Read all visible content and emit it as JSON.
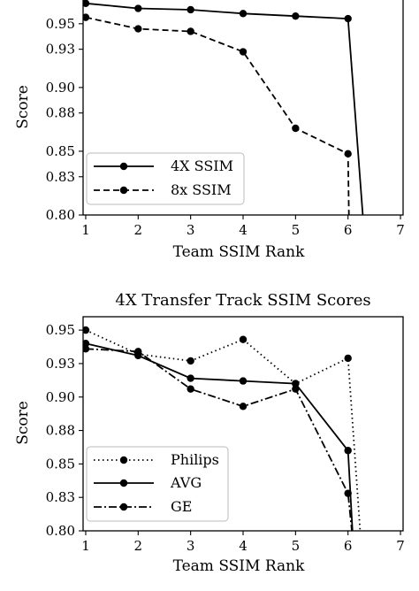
{
  "chart_data": [
    {
      "type": "line",
      "title": "",
      "xlabel": "Team SSIM Rank",
      "ylabel": "Score",
      "xlim": [
        0.95,
        7.05
      ],
      "ylim": [
        0.8,
        0.97
      ],
      "xticks": [
        1,
        2,
        3,
        4,
        5,
        6,
        7
      ],
      "yticks": [
        0.8,
        0.83,
        0.85,
        0.88,
        0.9,
        0.93,
        0.95
      ],
      "ytick_labels": [
        "0.80",
        "0.83",
        "0.85",
        "0.88",
        "0.90",
        "0.93",
        "0.95"
      ],
      "legend_position": "lower-left",
      "grid": false,
      "series": [
        {
          "name": "4X SSIM",
          "style": "solid",
          "x": [
            1,
            2,
            3,
            4,
            5,
            6,
            6.3
          ],
          "y": [
            0.966,
            0.962,
            0.961,
            0.958,
            0.956,
            0.954,
            0.79
          ],
          "markers": [
            1,
            1,
            1,
            1,
            1,
            1,
            0
          ]
        },
        {
          "name": "8x SSIM",
          "style": "dashed",
          "x": [
            1,
            2,
            3,
            4,
            5,
            6,
            6.02
          ],
          "y": [
            0.955,
            0.946,
            0.944,
            0.928,
            0.868,
            0.848,
            0.79
          ],
          "markers": [
            1,
            1,
            1,
            1,
            1,
            1,
            0
          ]
        }
      ]
    },
    {
      "type": "line",
      "title": "4X Transfer Track SSIM Scores",
      "xlabel": "Team SSIM Rank",
      "ylabel": "Score",
      "xlim": [
        0.95,
        7.05
      ],
      "ylim": [
        0.8,
        0.96
      ],
      "xticks": [
        1,
        2,
        3,
        4,
        5,
        6,
        7
      ],
      "yticks": [
        0.8,
        0.825,
        0.85,
        0.875,
        0.9,
        0.925,
        0.95
      ],
      "ytick_labels": [
        "0.80",
        "0.83",
        "0.85",
        "0.88",
        "0.90",
        "0.93",
        "0.95"
      ],
      "legend_position": "lower-left",
      "grid": false,
      "series": [
        {
          "name": "Philips",
          "style": "dotted",
          "x": [
            1,
            2,
            3,
            4,
            5,
            6,
            6.25
          ],
          "y": [
            0.95,
            0.932,
            0.927,
            0.943,
            0.91,
            0.929,
            0.79
          ],
          "markers": [
            1,
            1,
            1,
            1,
            1,
            1,
            0
          ]
        },
        {
          "name": "AVG",
          "style": "solid",
          "x": [
            1,
            2,
            3,
            4,
            5,
            6,
            6.1
          ],
          "y": [
            0.94,
            0.931,
            0.914,
            0.912,
            0.91,
            0.86,
            0.79
          ],
          "markers": [
            1,
            1,
            1,
            1,
            1,
            1,
            0
          ]
        },
        {
          "name": "GE",
          "style": "dashdot",
          "x": [
            1,
            2,
            3,
            4,
            5,
            6,
            6.1
          ],
          "y": [
            0.936,
            0.934,
            0.906,
            0.893,
            0.906,
            0.828,
            0.79
          ],
          "markers": [
            1,
            1,
            1,
            1,
            1,
            1,
            0
          ]
        }
      ]
    }
  ]
}
